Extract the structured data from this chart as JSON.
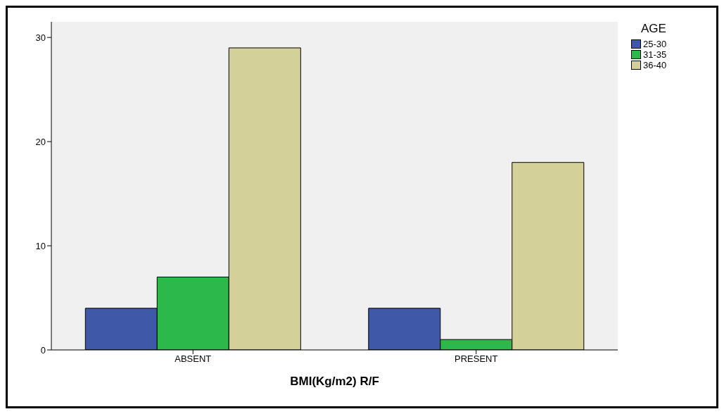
{
  "chart_data": {
    "type": "bar",
    "xlabel": "BMI(Kg/m2) R/F",
    "legend_title": "AGE",
    "legend": "top right",
    "categories": [
      "ABSENT",
      "PRESENT"
    ],
    "series": [
      {
        "name": "25-30",
        "color": "#3f58a8",
        "values": [
          4,
          4
        ]
      },
      {
        "name": "31-35",
        "color": "#2db84a",
        "values": [
          7,
          1
        ]
      },
      {
        "name": "36-40",
        "color": "#d4d09a",
        "values": [
          29,
          18
        ]
      }
    ],
    "ylim": [
      0,
      31.5
    ],
    "yticks": [
      0,
      10,
      20,
      30
    ],
    "grid": false
  }
}
